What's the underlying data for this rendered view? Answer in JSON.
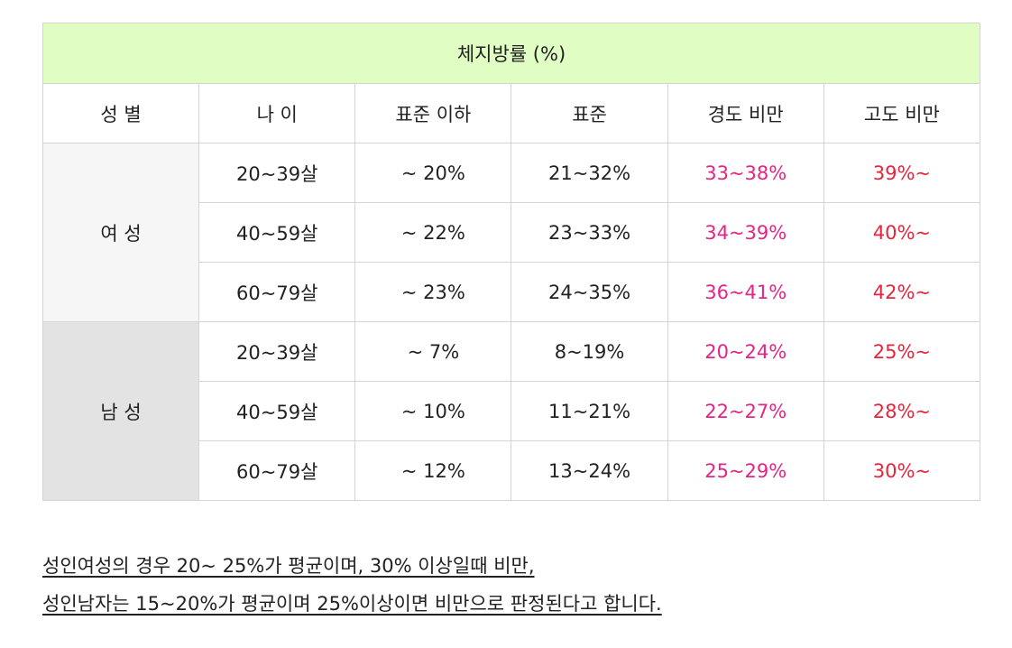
{
  "table": {
    "title": "체지방률 (%)",
    "headers": [
      "성 별",
      "나 이",
      "표준 이하",
      "표준",
      "경도 비만",
      "고도 비만"
    ],
    "groups": [
      {
        "gender": "여 성",
        "rows": [
          [
            "20~39살",
            "~ 20%",
            "21~32%",
            "33~38%",
            "39%~"
          ],
          [
            "40~59살",
            "~ 22%",
            "23~33%",
            "34~39%",
            "40%~"
          ],
          [
            "60~79살",
            "~ 23%",
            "24~35%",
            "36~41%",
            "42%~"
          ]
        ]
      },
      {
        "gender": "남 성",
        "rows": [
          [
            "20~39살",
            "~ 7%",
            "8~19%",
            "20~24%",
            "25%~"
          ],
          [
            "40~59살",
            "~ 10%",
            "11~21%",
            "22~27%",
            "28%~"
          ],
          [
            "60~79살",
            "~ 12%",
            "13~24%",
            "25~29%",
            "30%~"
          ]
        ]
      }
    ],
    "colors": {
      "title_bg": "#e0fdc3",
      "female_bg": "#f6f6f6",
      "male_bg": "#e3e3e3",
      "mild_text": "#e42585",
      "severe_text": "#e8243c"
    }
  },
  "notes": [
    "성인여성의 경우 20~ 25%가 평균이며, 30% 이상일때 비만,",
    "성인남자는 15~20%가 평균이며 25%이상이면 비만으로 판정된다고 합니다."
  ]
}
